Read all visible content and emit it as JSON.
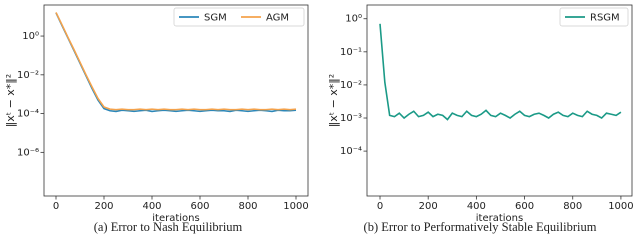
{
  "chart_data": [
    {
      "type": "line",
      "x_label": "iterations",
      "y_label": "‖xᵗ − x*‖²",
      "caption": "(a) Error to Nash Equilibrium",
      "log_y": true,
      "grid": false,
      "legend": "upper right",
      "xlim": [
        -50,
        1050
      ],
      "xticks": [
        0,
        200,
        400,
        600,
        800,
        1000
      ],
      "ylim": [
        5.6e-09,
        40
      ],
      "yticks": [
        {
          "value": 1,
          "label": "10⁰"
        },
        {
          "value": 0.01,
          "label": "10⁻²"
        },
        {
          "value": 0.0001,
          "label": "10⁻⁴"
        },
        {
          "value": 1e-06,
          "label": "10⁻⁶"
        }
      ],
      "x": [
        0,
        25,
        50,
        75,
        100,
        125,
        150,
        175,
        200,
        225,
        250,
        275,
        300,
        325,
        350,
        375,
        400,
        425,
        450,
        475,
        500,
        525,
        550,
        575,
        600,
        625,
        650,
        675,
        700,
        725,
        750,
        775,
        800,
        825,
        850,
        875,
        900,
        925,
        950,
        975,
        1000
      ],
      "series": [
        {
          "name": "SGM",
          "color": "#2b87b9",
          "values": [
            15.8,
            3.5,
            0.79,
            0.18,
            0.04,
            0.0089,
            0.002,
            0.0005,
            0.00018,
            0.00014,
            0.00013,
            0.00015,
            0.00014,
            0.00013,
            0.00014,
            0.00015,
            0.00013,
            0.00014,
            0.00015,
            0.00014,
            0.00013,
            0.00014,
            0.00015,
            0.00014,
            0.00013,
            0.00014,
            0.00015,
            0.00014,
            0.00014,
            0.00013,
            0.00015,
            0.00014,
            0.00013,
            0.00014,
            0.00015,
            0.00014,
            0.00013,
            0.00015,
            0.00014,
            0.00014,
            0.00015
          ]
        },
        {
          "name": "AGM",
          "color": "#f4a24c",
          "values": [
            16.5,
            3.8,
            0.85,
            0.2,
            0.045,
            0.01,
            0.0024,
            0.0006,
            0.00022,
            0.00017,
            0.00016,
            0.00017,
            0.00016,
            0.00016,
            0.00017,
            0.00016,
            0.00017,
            0.00016,
            0.00017,
            0.00016,
            0.00016,
            0.00017,
            0.00016,
            0.00017,
            0.00016,
            0.00016,
            0.00017,
            0.00016,
            0.00017,
            0.00016,
            0.00016,
            0.00017,
            0.00016,
            0.00017,
            0.00016,
            0.00016,
            0.00017,
            0.00016,
            0.00017,
            0.00016,
            0.00017
          ]
        }
      ]
    },
    {
      "type": "line",
      "x_label": "iterations",
      "y_label": "‖xᵗ − x*‖²",
      "caption": "(b) Error to Performatively Stable Equilibrium",
      "log_y": true,
      "grid": false,
      "legend": "upper right",
      "xlim": [
        -54,
        1046
      ],
      "xticks": [
        0,
        200,
        400,
        600,
        800,
        1000
      ],
      "ylim": [
        4.4e-06,
        2.6
      ],
      "yticks": [
        {
          "value": 1,
          "label": "10⁰"
        },
        {
          "value": 0.1,
          "label": "10⁻¹"
        },
        {
          "value": 0.01,
          "label": "10⁻²"
        },
        {
          "value": 0.001,
          "label": "10⁻³"
        },
        {
          "value": 0.0001,
          "label": "10⁻⁴"
        }
      ],
      "x": [
        0,
        20,
        40,
        60,
        80,
        100,
        120,
        140,
        160,
        180,
        200,
        220,
        240,
        260,
        280,
        300,
        320,
        340,
        360,
        380,
        400,
        420,
        440,
        460,
        480,
        500,
        520,
        540,
        560,
        580,
        600,
        620,
        640,
        660,
        680,
        700,
        720,
        740,
        760,
        780,
        800,
        820,
        840,
        860,
        880,
        900,
        920,
        940,
        960,
        980,
        1000
      ],
      "series": [
        {
          "name": "RSGM",
          "color": "#1b9a87",
          "values": [
            0.7,
            0.012,
            0.0012,
            0.0011,
            0.0014,
            0.001,
            0.0013,
            0.0016,
            0.0011,
            0.0012,
            0.0015,
            0.0011,
            0.0013,
            0.0012,
            0.0009,
            0.0014,
            0.0012,
            0.0011,
            0.0016,
            0.0012,
            0.0011,
            0.0013,
            0.0017,
            0.0012,
            0.0011,
            0.0014,
            0.0012,
            0.001,
            0.0013,
            0.0016,
            0.0012,
            0.0011,
            0.0013,
            0.0014,
            0.0012,
            0.001,
            0.0013,
            0.0015,
            0.0012,
            0.0011,
            0.0014,
            0.0012,
            0.0011,
            0.0016,
            0.0013,
            0.0012,
            0.001,
            0.0014,
            0.0013,
            0.0012,
            0.0015
          ]
        }
      ]
    }
  ]
}
